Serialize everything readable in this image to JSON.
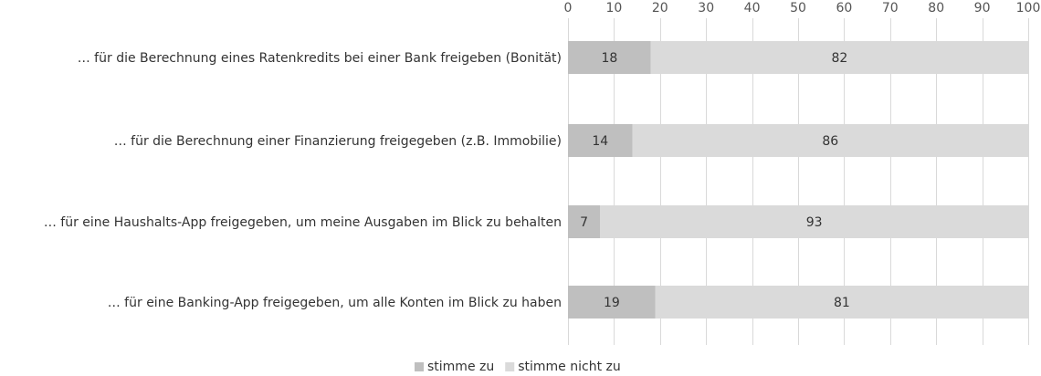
{
  "chart_data": {
    "type": "bar",
    "orientation": "horizontal",
    "stacked": true,
    "categories": [
      "… für die Berechnung eines Ratenkredits bei einer Bank freigeben (Bonität)",
      "… für die Berechnung einer Finanzierung freigegeben (z.B. Immobilie)",
      "… für eine Haushalts-App freigegeben, um meine Ausgaben im Blick zu behalten",
      "… für eine Banking-App freigegeben, um alle Konten im Blick zu haben"
    ],
    "series": [
      {
        "name": "stimme zu",
        "values": [
          18,
          14,
          7,
          19
        ],
        "color": "#bfbfbf"
      },
      {
        "name": "stimme nicht zu",
        "values": [
          82,
          86,
          93,
          81
        ],
        "color": "#dadada"
      }
    ],
    "xlim": [
      0,
      100
    ],
    "x_ticks": [
      0,
      10,
      20,
      30,
      40,
      50,
      60,
      70,
      80,
      90,
      100
    ],
    "axis_position": "top",
    "grid": true,
    "legend_position": "bottom",
    "data_labels": true
  }
}
